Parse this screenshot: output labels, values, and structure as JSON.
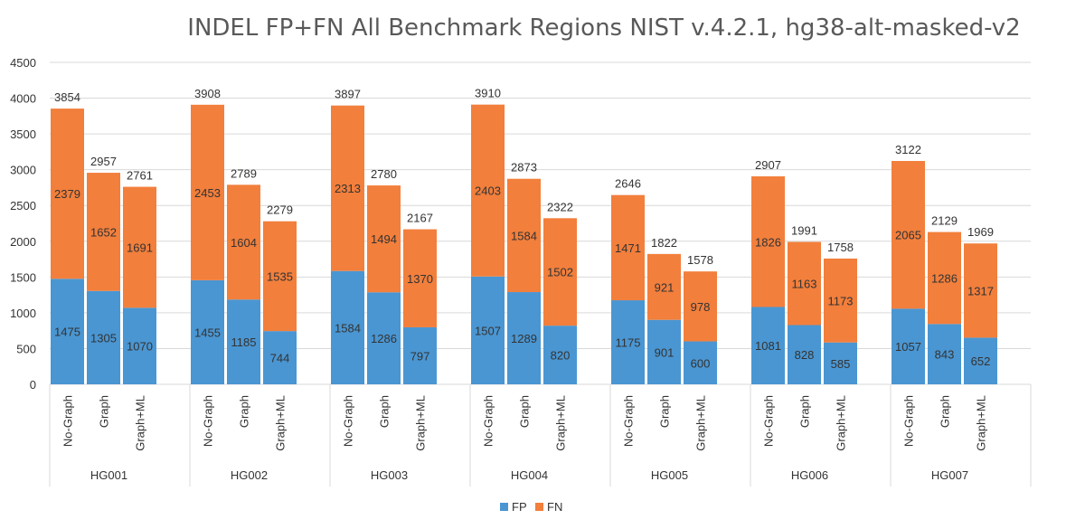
{
  "chart_data": {
    "type": "bar",
    "stacked": true,
    "title": "INDEL FP+FN All Benchmark Regions  NIST v.4.2.1, hg38-alt-masked-v2",
    "ylim": [
      0,
      4500
    ],
    "yticks": [
      0,
      500,
      1000,
      1500,
      2000,
      2500,
      3000,
      3500,
      4000,
      4500
    ],
    "grid": true,
    "legend_position": "bottom",
    "groups": [
      "HG001",
      "HG002",
      "HG003",
      "HG004",
      "HG005",
      "HG006",
      "HG007"
    ],
    "categories": [
      "No-Graph",
      "Graph",
      "Graph+ML"
    ],
    "series": [
      {
        "name": "FP",
        "color": "#4a96d2",
        "values": [
          [
            1475,
            1305,
            1070
          ],
          [
            1455,
            1185,
            744
          ],
          [
            1584,
            1286,
            797
          ],
          [
            1507,
            1289,
            820
          ],
          [
            1175,
            901,
            600
          ],
          [
            1081,
            828,
            585
          ],
          [
            1057,
            843,
            652
          ]
        ]
      },
      {
        "name": "FN",
        "color": "#f27f3c",
        "values": [
          [
            2379,
            1652,
            1691
          ],
          [
            2453,
            1604,
            1535
          ],
          [
            2313,
            1494,
            1370
          ],
          [
            2403,
            1584,
            1502
          ],
          [
            1471,
            921,
            978
          ],
          [
            1826,
            1163,
            1173
          ],
          [
            2065,
            1286,
            1317
          ]
        ]
      }
    ],
    "totals": [
      [
        3854,
        2957,
        2761
      ],
      [
        3908,
        2789,
        2279
      ],
      [
        3897,
        2780,
        2167
      ],
      [
        3910,
        2873,
        2322
      ],
      [
        2646,
        1822,
        1578
      ],
      [
        2907,
        1991,
        1758
      ],
      [
        3122,
        2129,
        1969
      ]
    ]
  }
}
